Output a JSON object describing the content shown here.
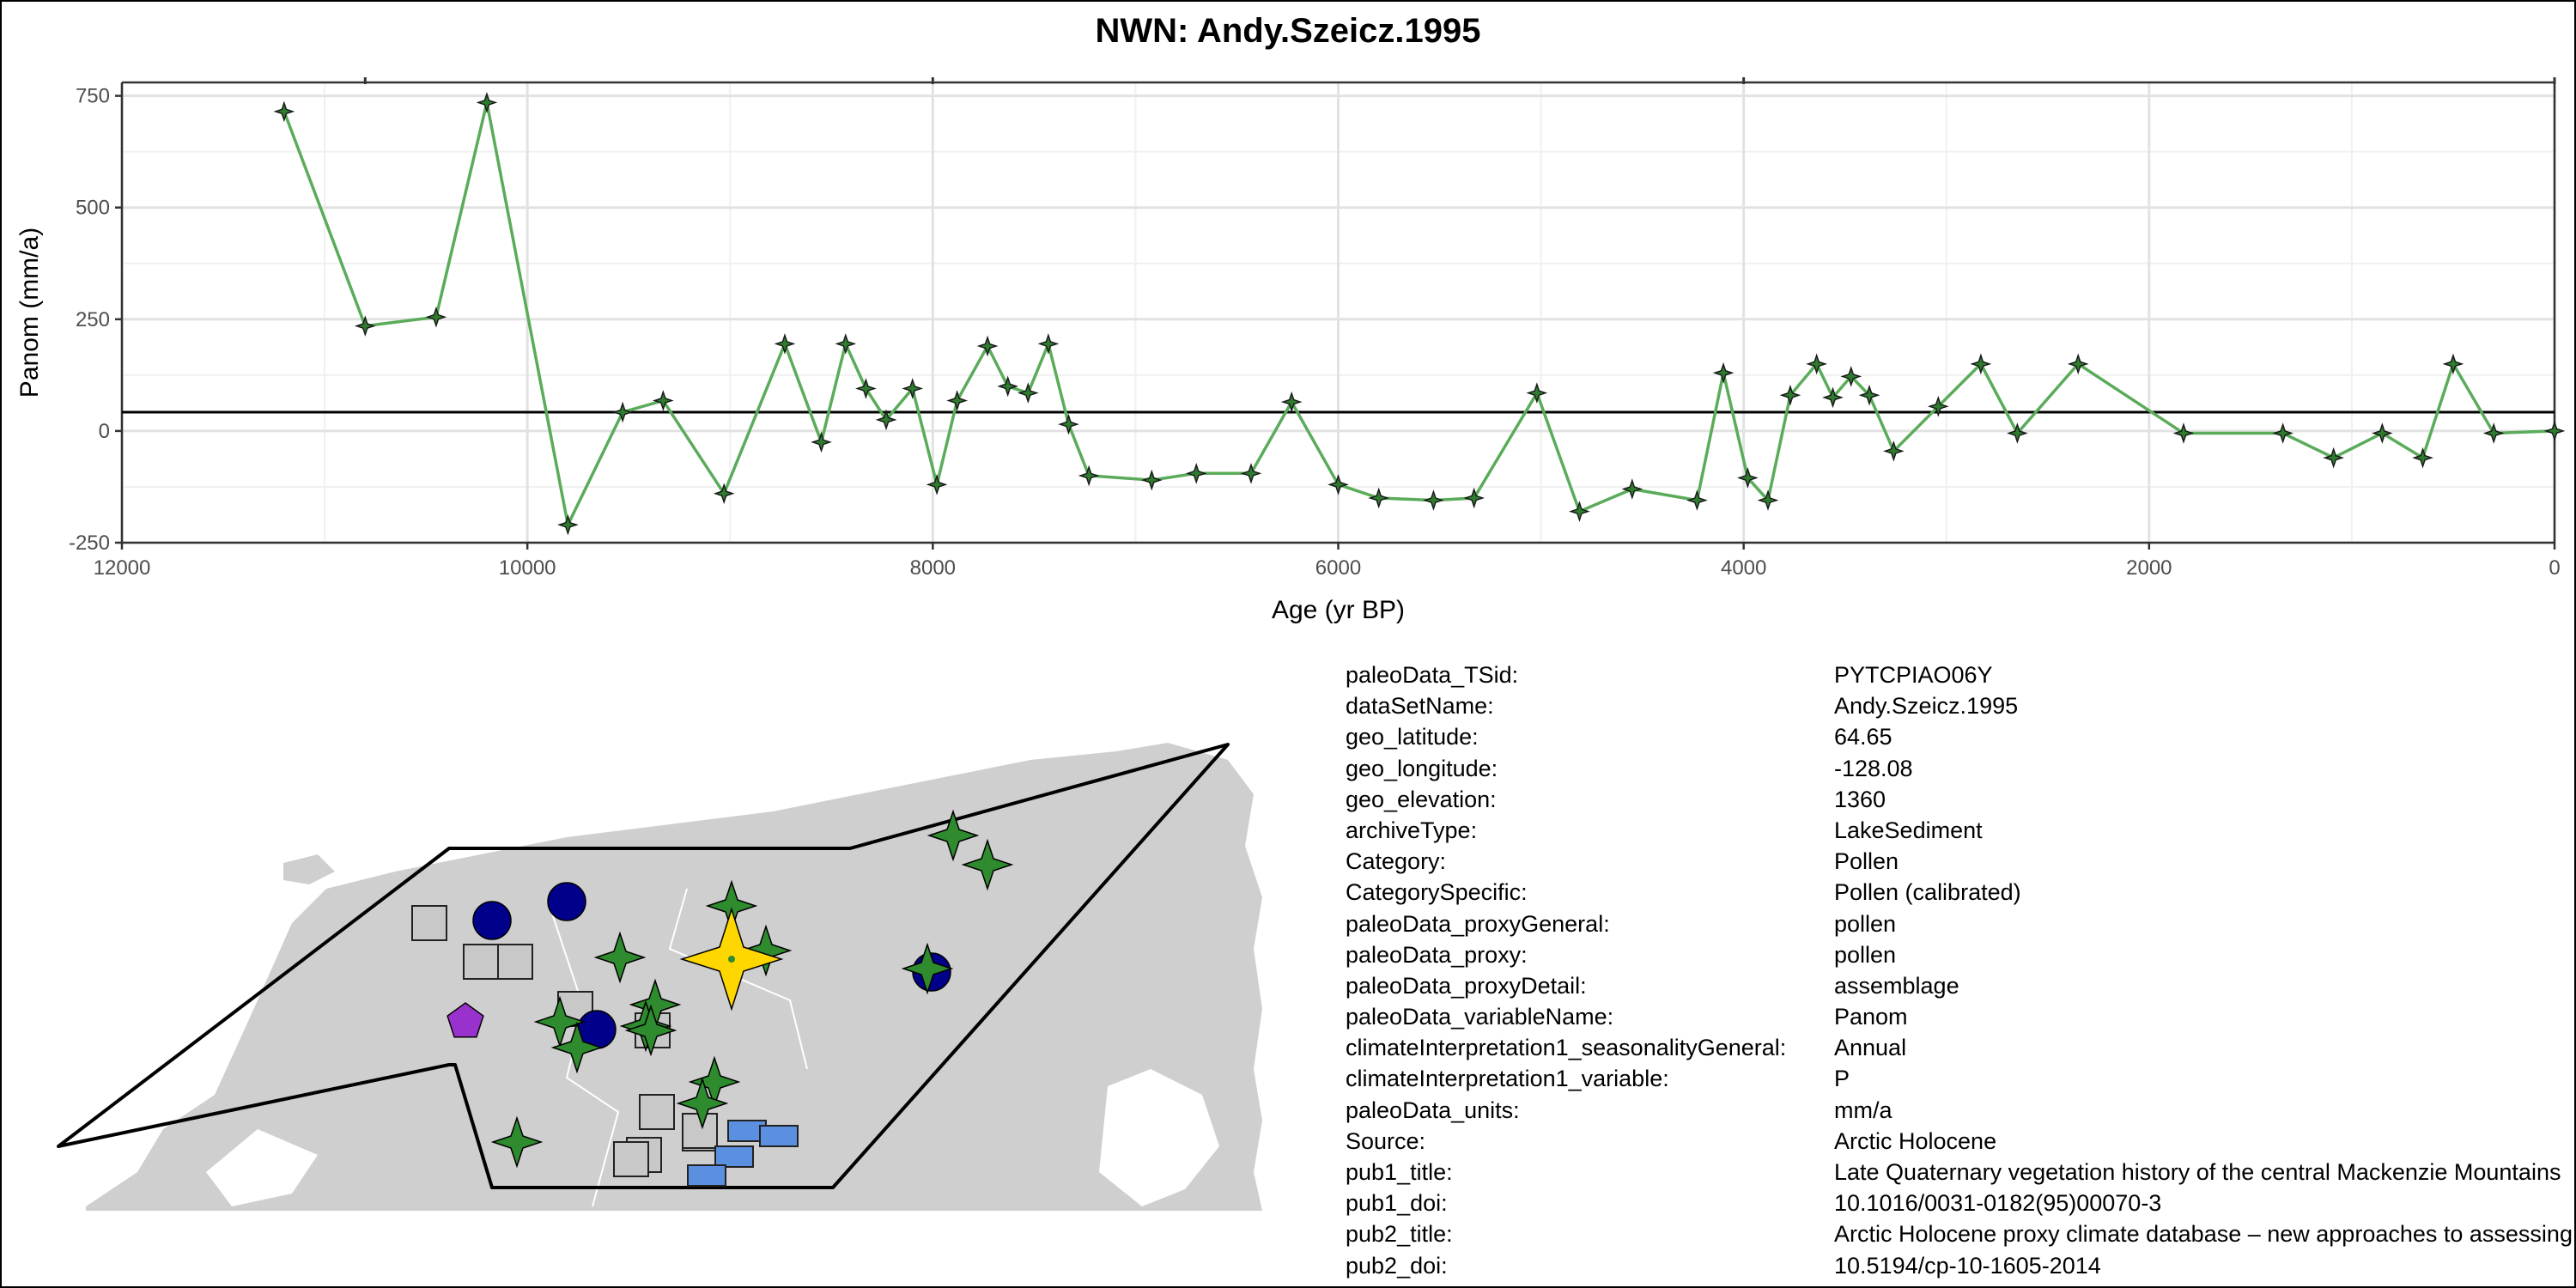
{
  "title": "NWN: Andy.Szeicz.1995",
  "chart_data": {
    "type": "line",
    "title": "NWN: Andy.Szeicz.1995",
    "xlabel": "Age (yr BP)",
    "ylabel": "Panom (mm/a)",
    "x_reversed": true,
    "xlim": [
      12000,
      0
    ],
    "ylim": [
      -250,
      780
    ],
    "x_ticks": [
      12000,
      10000,
      8000,
      6000,
      4000,
      2000,
      0
    ],
    "y_ticks": [
      -250,
      0,
      250,
      500,
      750
    ],
    "grid": true,
    "reference_line_y": 42,
    "line_color": "#5aab5a",
    "marker_color": "#2e7d2e",
    "series": [
      {
        "x": [
          11200,
          10800,
          10450,
          10200,
          9800,
          9530,
          9330,
          9030,
          8730,
          8550,
          8430,
          8330,
          8230,
          8100,
          7980,
          7880,
          7730,
          7630,
          7530,
          7430,
          7330,
          7230,
          6920,
          6700,
          6430,
          6230,
          6000,
          5800,
          5530,
          5330,
          5020,
          4810,
          4550,
          4230,
          4100,
          3980,
          3880,
          3770,
          3640,
          3560,
          3470,
          3380,
          3260,
          3040,
          2830,
          2650,
          2350,
          1830,
          1340,
          1090,
          850,
          650,
          500,
          300,
          0
        ],
        "y": [
          715,
          235,
          255,
          735,
          -210,
          42,
          68,
          -140,
          195,
          -25,
          195,
          95,
          25,
          95,
          -120,
          68,
          190,
          100,
          85,
          195,
          15,
          -100,
          -110,
          -95,
          -95,
          65,
          -120,
          -150,
          -155,
          -150,
          85,
          -180,
          -130,
          -155,
          130,
          -105,
          -155,
          80,
          150,
          75,
          122,
          80,
          -45,
          55,
          150,
          -5,
          150,
          -5,
          -5,
          -60,
          -5,
          -60,
          150,
          -5,
          0
        ]
      }
    ]
  },
  "map": {
    "land_color": "#cfcfcf",
    "region_outline_color": "#000000",
    "legend_colors": {
      "pollen": "#2e8b2e",
      "highlight": "#ffd700",
      "circle": "#00008b",
      "square": "#c8c8c8",
      "rect": "#5b8fe0",
      "pentagon": "#9932cc"
    }
  },
  "metadata": [
    {
      "key": "paleoData_TSid:",
      "value": "PYTCPIAO06Y"
    },
    {
      "key": "dataSetName:",
      "value": "Andy.Szeicz.1995"
    },
    {
      "key": "geo_latitude:",
      "value": "64.65"
    },
    {
      "key": "geo_longitude:",
      "value": "-128.08"
    },
    {
      "key": "geo_elevation:",
      "value": "1360"
    },
    {
      "key": "archiveType:",
      "value": "LakeSediment"
    },
    {
      "key": "Category:",
      "value": "Pollen"
    },
    {
      "key": "CategorySpecific:",
      "value": "Pollen (calibrated)"
    },
    {
      "key": "paleoData_proxyGeneral:",
      "value": "pollen"
    },
    {
      "key": "paleoData_proxy:",
      "value": "pollen"
    },
    {
      "key": "paleoData_proxyDetail:",
      "value": "assemblage"
    },
    {
      "key": "paleoData_variableName:",
      "value": "Panom"
    },
    {
      "key": "climateInterpretation1_seasonalityGeneral:",
      "value": "Annual"
    },
    {
      "key": "climateInterpretation1_variable:",
      "value": "P"
    },
    {
      "key": "paleoData_units:",
      "value": "mm/a"
    },
    {
      "key": "Source:",
      "value": "Arctic Holocene"
    },
    {
      "key": "pub1_title:",
      "value": "Late Quaternary vegetation history of the central Mackenzie Mountains"
    },
    {
      "key": "pub1_doi:",
      "value": "10.1016/0031-0182(95)00070-3"
    },
    {
      "key": "pub2_title:",
      "value": "Arctic Holocene proxy climate database – new approaches to assessing"
    },
    {
      "key": "pub2_doi:",
      "value": "10.5194/cp-10-1605-2014"
    }
  ]
}
